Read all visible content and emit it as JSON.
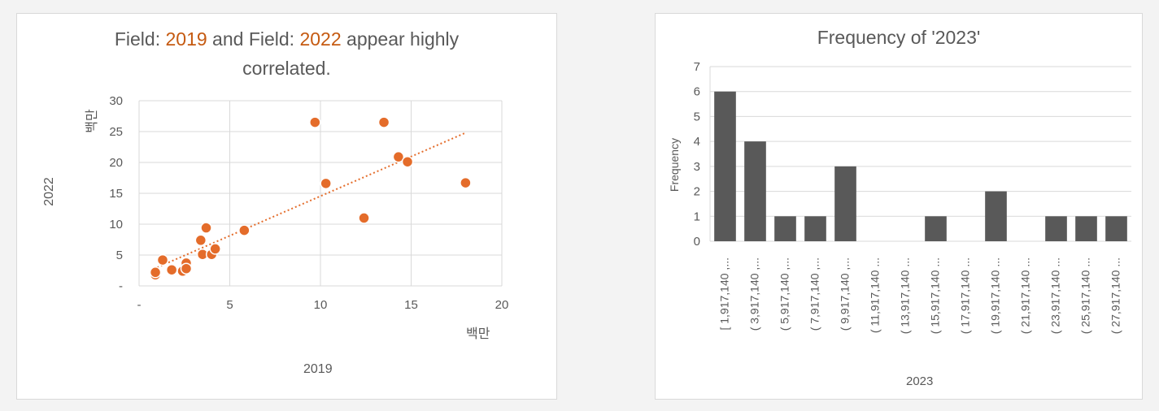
{
  "chart_data": [
    {
      "type": "scatter",
      "title_parts": [
        "Field: ",
        "2019",
        " and Field: ",
        "2022",
        " appear highly"
      ],
      "title_line2": "correlated.",
      "xlabel": "2019",
      "ylabel": "2022",
      "x_unit_label": "백만",
      "y_unit_label": "백만",
      "x_ticks": [
        "-",
        "5",
        "10",
        "15",
        "20"
      ],
      "y_ticks": [
        "-",
        "5",
        "10",
        "15",
        "20",
        "25",
        "30"
      ],
      "xlim": [
        0,
        20
      ],
      "ylim": [
        0,
        30
      ],
      "grid": true,
      "trendline": "linear (dotted)",
      "colors": {
        "points": "#e46c2a",
        "trend": "#e46c2a",
        "highlight": "#c55a11"
      },
      "points": [
        {
          "x": 0.9,
          "y": 1.8
        },
        {
          "x": 0.9,
          "y": 2.2
        },
        {
          "x": 1.3,
          "y": 4.2
        },
        {
          "x": 1.8,
          "y": 2.6
        },
        {
          "x": 2.4,
          "y": 2.4
        },
        {
          "x": 2.6,
          "y": 3.7
        },
        {
          "x": 2.6,
          "y": 2.8
        },
        {
          "x": 3.4,
          "y": 7.4
        },
        {
          "x": 3.5,
          "y": 5.1
        },
        {
          "x": 3.7,
          "y": 9.4
        },
        {
          "x": 4.0,
          "y": 5.1
        },
        {
          "x": 4.2,
          "y": 6.0
        },
        {
          "x": 5.8,
          "y": 9.0
        },
        {
          "x": 9.7,
          "y": 26.5
        },
        {
          "x": 10.3,
          "y": 16.6
        },
        {
          "x": 12.4,
          "y": 11.0
        },
        {
          "x": 13.5,
          "y": 26.5
        },
        {
          "x": 14.3,
          "y": 20.9
        },
        {
          "x": 14.8,
          "y": 20.1
        },
        {
          "x": 18.0,
          "y": 16.7
        }
      ],
      "trend": {
        "x0": 1.0,
        "y0": 3.0,
        "x1": 18.0,
        "y1": 24.8
      }
    },
    {
      "type": "bar",
      "title": "Frequency of '2023'",
      "xlabel": "2023",
      "ylabel": "Frequency",
      "y_ticks": [
        "0",
        "1",
        "2",
        "3",
        "4",
        "5",
        "6",
        "7"
      ],
      "ylim": [
        0,
        7
      ],
      "grid": true,
      "colors": {
        "bars": "#595959"
      },
      "categories": [
        "[ 1,917,140 ,...",
        "( 3,917,140 ,...",
        "( 5,917,140 ,...",
        "( 7,917,140 ,...",
        "( 9,917,140 ,...",
        "( 11,917,140 ...",
        "( 13,917,140 ...",
        "( 15,917,140 ...",
        "( 17,917,140 ...",
        "( 19,917,140 ...",
        "( 21,917,140 ...",
        "( 23,917,140 ...",
        "( 25,917,140 ...",
        "( 27,917,140 ..."
      ],
      "values": [
        6,
        4,
        1,
        1,
        3,
        0,
        0,
        1,
        0,
        2,
        0,
        1,
        1,
        1
      ]
    }
  ]
}
